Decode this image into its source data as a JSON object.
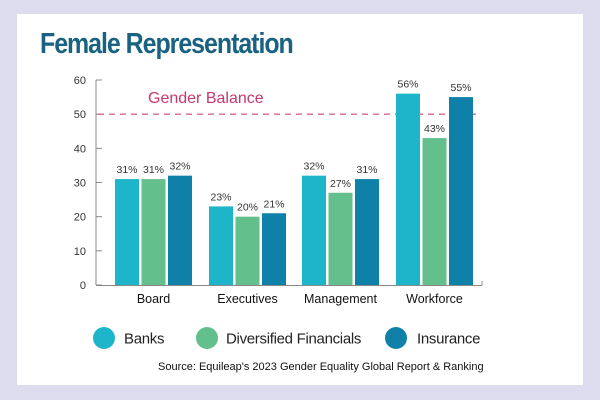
{
  "chart_data": {
    "type": "bar",
    "title": "Female Representation",
    "xlabel": "",
    "ylabel": "",
    "ylim": [
      0,
      60
    ],
    "yticks": [
      0,
      10,
      20,
      30,
      40,
      50,
      60
    ],
    "grid": false,
    "categories": [
      "Board",
      "Executives",
      "Management",
      "Workforce"
    ],
    "series": [
      {
        "name": "Banks",
        "color": "#1cb5c9",
        "values": [
          31,
          23,
          32,
          56
        ],
        "labels": [
          "31%",
          "23%",
          "32%",
          "56%"
        ]
      },
      {
        "name": "Diversified Financials",
        "color": "#63bf8c",
        "values": [
          31,
          20,
          27,
          43
        ],
        "labels": [
          "31%",
          "20%",
          "27%",
          "43%"
        ]
      },
      {
        "name": "Insurance",
        "color": "#0f80a8",
        "values": [
          32,
          21,
          31,
          55
        ],
        "labels": [
          "32%",
          "21%",
          "31%",
          "55%"
        ]
      }
    ],
    "reference_line": {
      "label": "Gender Balance",
      "value": 50,
      "color": "#d9668f"
    },
    "legend_position": "bottom",
    "source": "Source: Equileap's 2023 Gender Equality Global Report & Ranking"
  }
}
